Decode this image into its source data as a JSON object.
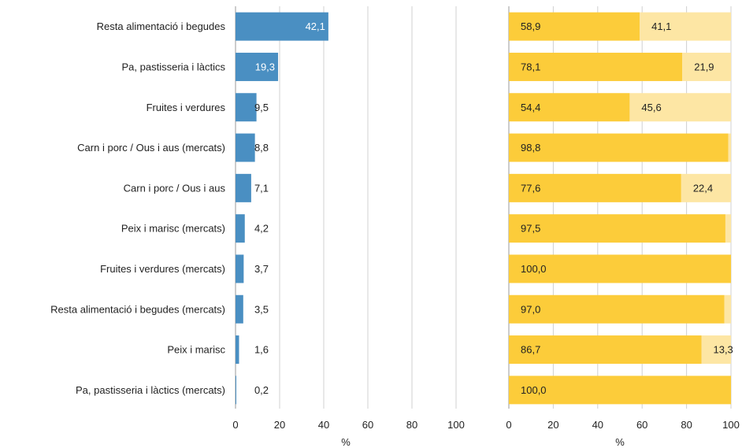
{
  "chart_data": [
    {
      "type": "bar",
      "orientation": "horizontal",
      "categories": [
        "Resta alimentació i begudes",
        "Pa, pastisseria i làctics",
        "Fruites i verdures",
        "Carn i porc / Ous i aus (mercats)",
        "Carn i porc / Ous i aus",
        "Peix i marisc (mercats)",
        "Fruites i verdures (mercats)",
        "Resta alimentació i begudes (mercats)",
        "Peix i marisc",
        "Pa, pastisseria i làctics (mercats)"
      ],
      "values": [
        42.1,
        19.3,
        9.5,
        8.8,
        7.1,
        4.2,
        3.7,
        3.5,
        1.6,
        0.2
      ],
      "data_labels": [
        "42,1",
        "19,3",
        "9,5",
        "8,8",
        "7,1",
        "4,2",
        "3,7",
        "3,5",
        "1,6",
        "0,2"
      ],
      "xlabel": "%",
      "xlim": [
        0,
        100
      ],
      "xticks": [
        "0",
        "20",
        "40",
        "60",
        "80",
        "100"
      ],
      "grid": true,
      "color": "#4a8fc2"
    },
    {
      "type": "bar",
      "orientation": "horizontal",
      "stacked": true,
      "series": [
        {
          "values": [
            58.9,
            78.1,
            54.4,
            98.8,
            77.6,
            97.5,
            100.0,
            97.0,
            86.7,
            100.0
          ],
          "data_labels": [
            "58,9",
            "78,1",
            "54,4",
            "98,8",
            "77,6",
            "97,5",
            "100,0",
            "97,0",
            "86,7",
            "100,0"
          ],
          "color": "#fccc3a"
        },
        {
          "values": [
            41.1,
            21.9,
            45.6,
            1.2,
            22.4,
            2.5,
            0.0,
            3.0,
            13.3,
            0.0
          ],
          "data_labels": [
            "41,1",
            "21,9",
            "45,6",
            "",
            "22,4",
            "",
            "",
            "",
            "13,3",
            ""
          ],
          "color": "#fde6a4"
        }
      ],
      "xlabel": "%",
      "xlim": [
        0,
        100
      ],
      "xticks": [
        "0",
        "20",
        "40",
        "60",
        "80",
        "100"
      ],
      "grid": true
    }
  ]
}
